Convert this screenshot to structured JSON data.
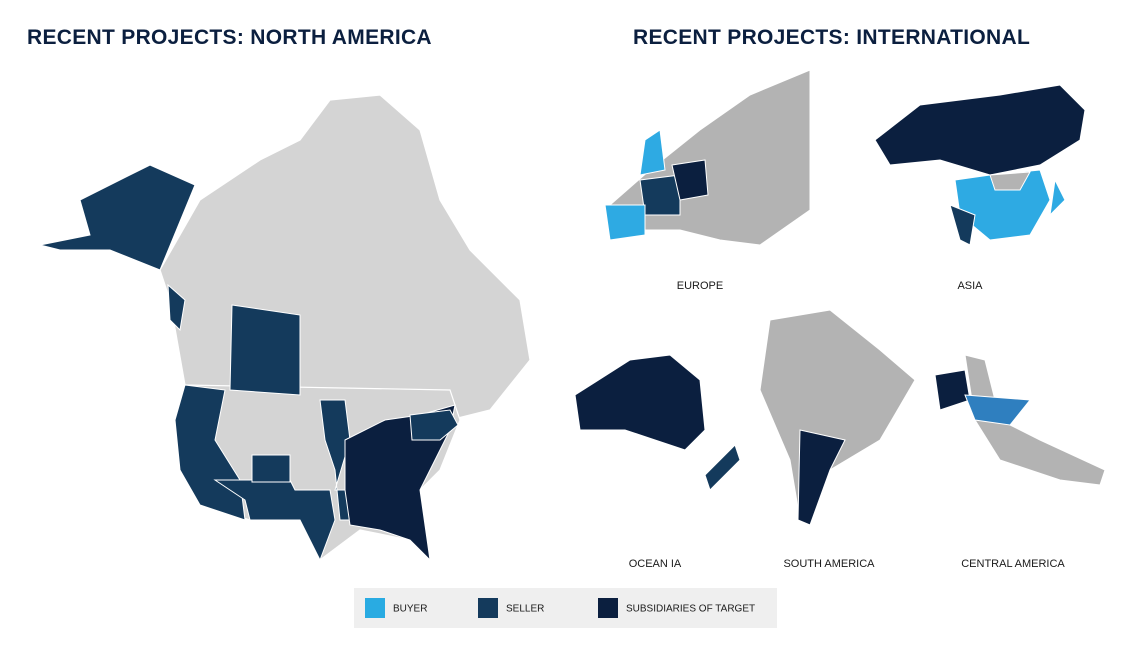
{
  "titles": {
    "north_america": "RECENT PROJECTS: NORTH AMERICA",
    "international": "RECENT PROJECTS: INTERNATIONAL"
  },
  "regions": [
    "EUROPE",
    "ASIA",
    "OCEAN IA",
    "SOUTH AMERICA",
    "CENTRAL AMERICA"
  ],
  "legend": [
    {
      "label": "BUYER",
      "color": "#29abe2"
    },
    {
      "label": "SELLER",
      "color": "#143a5c"
    },
    {
      "label": "SUBSIDIARIES OF TARGET",
      "color": "#0b1f3f"
    }
  ]
}
